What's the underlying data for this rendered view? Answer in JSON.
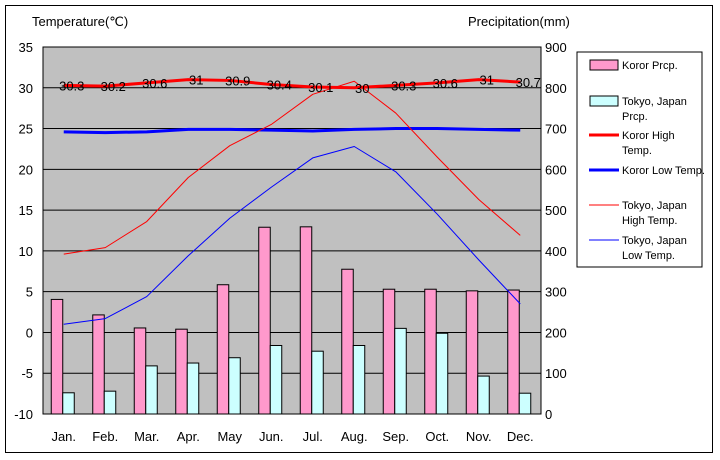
{
  "chart_data": {
    "type": "bar",
    "title": "",
    "ylabel_left": "Temperature(℃)",
    "ylabel_right": "Precipitation(mm)",
    "categories": [
      "Jan.",
      "Feb.",
      "Mar.",
      "Apr.",
      "May",
      "Jun.",
      "Jul.",
      "Aug.",
      "Sep.",
      "Oct.",
      "Nov.",
      "Dec."
    ],
    "ylim_left": [
      -10,
      35
    ],
    "ylim_right": [
      0,
      900
    ],
    "yticks_left": [
      -10,
      -5,
      0,
      5,
      10,
      15,
      20,
      25,
      30,
      35
    ],
    "yticks_right": [
      0,
      100,
      200,
      300,
      400,
      500,
      600,
      700,
      800,
      900
    ],
    "grid": true,
    "legend_position": "right",
    "bar_series": [
      {
        "name": "Koror Prcp.",
        "color": "#ff99cc",
        "values": [
          281,
          243,
          211,
          208,
          317,
          458,
          459,
          355,
          306,
          306,
          302,
          304
        ]
      },
      {
        "name": "Tokyo, Japan Prcp.",
        "color": "#ccffff",
        "values": [
          52,
          56,
          118,
          125,
          138,
          168,
          154,
          168,
          210,
          198,
          93,
          51
        ]
      }
    ],
    "line_series": [
      {
        "name": "Koror High Temp.",
        "color": "#ff0000",
        "width": 3,
        "values": [
          30.3,
          30.2,
          30.6,
          31.0,
          30.9,
          30.4,
          30.1,
          30.0,
          30.3,
          30.6,
          31.0,
          30.7
        ],
        "labels": [
          "30.3",
          "30.2",
          "30.6",
          "31",
          "30.9",
          "30.4",
          "30.1",
          "30",
          "30.3",
          "30.6",
          "31",
          "30.7"
        ]
      },
      {
        "name": "Koror Low Temp.",
        "color": "#0000ff",
        "width": 3,
        "values": [
          24.6,
          24.5,
          24.6,
          24.9,
          24.9,
          24.8,
          24.7,
          24.9,
          25.0,
          25.0,
          24.9,
          24.8
        ]
      },
      {
        "name": "Tokyo, Japan High Temp.",
        "color": "#ff0000",
        "width": 1,
        "values": [
          9.6,
          10.4,
          13.6,
          19.0,
          22.9,
          25.5,
          29.2,
          30.8,
          26.9,
          21.5,
          16.3,
          11.9
        ]
      },
      {
        "name": "Tokyo, Japan Low Temp.",
        "color": "#0000ff",
        "width": 1,
        "values": [
          1.0,
          1.7,
          4.4,
          9.4,
          14.0,
          17.8,
          21.4,
          22.8,
          19.7,
          14.5,
          8.9,
          3.5
        ]
      }
    ],
    "legend": [
      {
        "label": "Koror Prcp.",
        "kind": "box",
        "color": "#ff99cc"
      },
      {
        "label": "Tokyo, Japan Prcp.",
        "kind": "box",
        "color": "#ccffff"
      },
      {
        "label": "Koror High Temp.",
        "kind": "line",
        "color": "#ff0000",
        "width": 3
      },
      {
        "label": "Koror Low Temp.",
        "kind": "line",
        "color": "#0000ff",
        "width": 3
      },
      {
        "label": "Tokyo, Japan High Temp.",
        "kind": "line",
        "color": "#ff0000",
        "width": 1
      },
      {
        "label": "Tokyo, Japan Low Temp.",
        "kind": "line",
        "color": "#0000ff",
        "width": 1
      }
    ]
  }
}
